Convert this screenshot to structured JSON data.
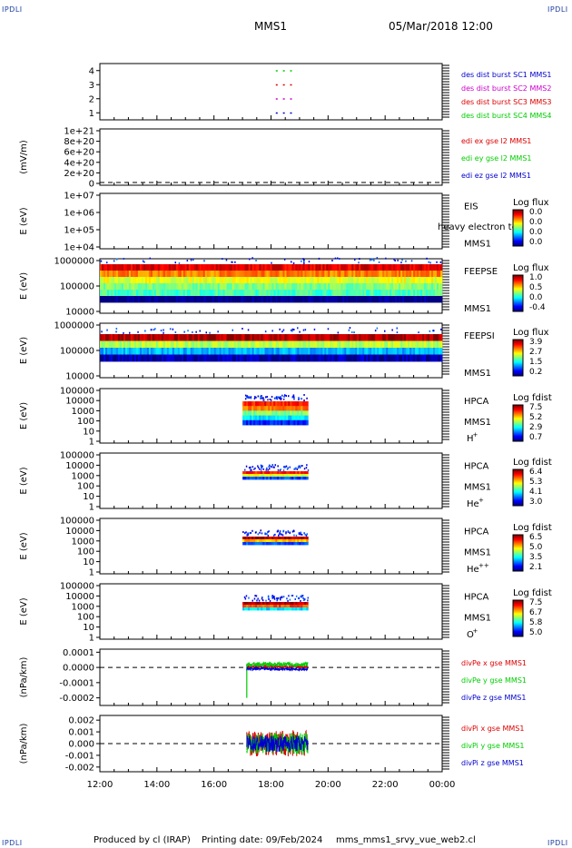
{
  "header": {
    "spacecraft": "MMS1",
    "datetime": "05/Mar/2018 12:00",
    "corner_label": "IPDLI"
  },
  "footer": {
    "produced_by": "Produced by cl (IRAP)",
    "printing_date": "Printing date: 09/Feb/2024",
    "filename": "mms_mms1_srvy_vue_web2.cl"
  },
  "colors": {
    "red": "#dd0000",
    "green": "#00cc00",
    "blue": "#0000cc",
    "magenta": "#cc00cc"
  },
  "chart_data": {
    "type": "multi-panel",
    "x_ticks": [
      "12:00",
      "14:00",
      "16:00",
      "18:00",
      "20:00",
      "22:00",
      "00:00"
    ],
    "x_range_hours": [
      12,
      24
    ],
    "panels": [
      {
        "type": "scatter",
        "yticks": [
          "4",
          "3",
          "2",
          "1"
        ],
        "ylim": [
          0.5,
          4.5
        ],
        "series": [
          {
            "name": "des dist burst SC1 MMS1",
            "color": "#0000cc",
            "points": [
              [
                18.2,
                1
              ],
              [
                18.45,
                1
              ],
              [
                18.7,
                1
              ]
            ]
          },
          {
            "name": "des dist burst SC2 MMS2",
            "color": "#cc00cc",
            "points": [
              [
                18.2,
                2
              ],
              [
                18.45,
                2
              ],
              [
                18.7,
                2
              ]
            ]
          },
          {
            "name": "des dist burst SC3 MMS3",
            "color": "#dd0000",
            "points": [
              [
                18.2,
                3
              ],
              [
                18.45,
                3
              ],
              [
                18.7,
                3
              ]
            ]
          },
          {
            "name": "des dist burst SC4 MMS4",
            "color": "#00cc00",
            "points": [
              [
                18.2,
                4
              ],
              [
                18.45,
                4
              ],
              [
                18.7,
                4
              ]
            ]
          }
        ]
      },
      {
        "type": "line",
        "ylabel": "(mV/m)",
        "yticks": [
          "1e+21",
          "8e+20",
          "6e+20",
          "4e+20",
          "2e+20",
          "0"
        ],
        "series": [
          {
            "name": "edi ex gse l2 MMS1",
            "color": "#dd0000"
          },
          {
            "name": "edi ey gse l2 MMS1",
            "color": "#00cc00"
          },
          {
            "name": "edi ez gse l2 MMS1",
            "color": "#0000cc"
          }
        ]
      },
      {
        "type": "heatmap",
        "ylabel": "E (eV)",
        "yticks": [
          "1e+07",
          "1e+06",
          "1e+05",
          "1e+04"
        ],
        "instrument": "EIS",
        "sc": "MMS1",
        "overlay_note": "heavy electron to",
        "cbar_title": "Log flux",
        "cbar_ticks": [
          "0.0",
          "0.0",
          "0.0",
          "0.0"
        ],
        "fill": null
      },
      {
        "type": "heatmap",
        "ylabel": "E (eV)",
        "yticks": [
          "1000000",
          "100000",
          "10000"
        ],
        "instrument": "FEEPSE",
        "sc": "MMS1",
        "cbar_title": "Log flux",
        "cbar_ticks": [
          "1.0",
          "0.5",
          "0.0",
          "-0.4"
        ],
        "fill": {
          "t0": 12,
          "t1": 24,
          "levels": [
            0.0,
            0.45,
            0.5,
            0.6,
            0.75,
            0.9
          ]
        }
      },
      {
        "type": "heatmap",
        "ylabel": "E (eV)",
        "yticks": [
          "1000000",
          "100000",
          "10000"
        ],
        "instrument": "FEEPSI",
        "sc": "MMS1",
        "cbar_title": "Log flux",
        "cbar_ticks": [
          "3.9",
          "2.7",
          "1.5",
          "0.2"
        ],
        "fill": {
          "t0": 12,
          "t1": 24,
          "levels": [
            0.05,
            0.3,
            0.55,
            0.95
          ]
        }
      },
      {
        "type": "heatmap",
        "ylabel": "E (eV)",
        "yticks": [
          "100000",
          "10000",
          "1000",
          "100",
          "10",
          "1"
        ],
        "instrument": "HPCA",
        "sc": "MMS1",
        "species": "H",
        "charge": "+",
        "cbar_title": "Log fdist",
        "cbar_ticks": [
          "7.5",
          "5.2",
          "2.9",
          "0.7"
        ],
        "fill": {
          "t0": 17.0,
          "t1": 19.3,
          "levels": [
            0.15,
            0.35,
            0.5,
            0.75,
            0.85
          ]
        }
      },
      {
        "type": "heatmap",
        "ylabel": "E (eV)",
        "yticks": [
          "100000",
          "10000",
          "1000",
          "100",
          "10",
          "1"
        ],
        "instrument": "HPCA",
        "sc": "MMS1",
        "species": "He",
        "charge": "+",
        "cbar_title": "Log fdist",
        "cbar_ticks": [
          "6.4",
          "5.3",
          "4.1",
          "3.0"
        ],
        "fill": {
          "t0": 17.0,
          "t1": 19.3,
          "levels": [
            0.2,
            0.6,
            0.85
          ]
        }
      },
      {
        "type": "heatmap",
        "ylabel": "E (eV)",
        "yticks": [
          "100000",
          "10000",
          "1000",
          "100",
          "10",
          "1"
        ],
        "instrument": "HPCA",
        "sc": "MMS1",
        "species": "He",
        "charge": "++",
        "cbar_title": "Log fdist",
        "cbar_ticks": [
          "6.5",
          "5.0",
          "3.5",
          "2.1"
        ],
        "fill": {
          "t0": 17.0,
          "t1": 19.3,
          "levels": [
            0.2,
            0.7,
            0.95
          ]
        }
      },
      {
        "type": "heatmap",
        "ylabel": "E (eV)",
        "yticks": [
          "100000",
          "10000",
          "1000",
          "100",
          "10",
          "1"
        ],
        "instrument": "HPCA",
        "sc": "MMS1",
        "species": "O",
        "charge": "+",
        "cbar_title": "Log fdist",
        "cbar_ticks": [
          "7.5",
          "6.7",
          "5.8",
          "5.0"
        ],
        "fill": {
          "t0": 17.0,
          "t1": 19.3,
          "levels": [
            0.35,
            0.8,
            0.95
          ]
        }
      },
      {
        "type": "line",
        "ylabel": "(nPa/km)",
        "yticks": [
          "0.0001",
          "0.0000",
          "-0.0001",
          "-0.0002"
        ],
        "yvals": [
          0.0001,
          0.0,
          -0.0001,
          -0.0002
        ],
        "ylim": [
          -0.00025,
          0.00012
        ],
        "zero_line": true,
        "t0": 17.15,
        "t1": 19.3,
        "series": [
          {
            "name": "divPe x gse MMS1",
            "color": "#dd0000",
            "center": 5e-06,
            "amp": 1e-05
          },
          {
            "name": "divPe y gse MMS1",
            "color": "#00cc00",
            "center": 2e-05,
            "amp": 1.5e-05,
            "spike_min": -0.0002
          },
          {
            "name": "divPe z gse MMS1",
            "color": "#0000cc",
            "center": -1e-05,
            "amp": 1e-05
          }
        ]
      },
      {
        "type": "line",
        "ylabel": "(nPa/km)",
        "yticks": [
          "0.002",
          "0.001",
          "0.000",
          "-0.001",
          "-0.002"
        ],
        "yvals": [
          0.002,
          0.001,
          0.0,
          -0.001,
          -0.002
        ],
        "ylim": [
          -0.0024,
          0.0024
        ],
        "zero_line": true,
        "t0": 17.15,
        "t1": 19.3,
        "series": [
          {
            "name": "divPi x gse MMS1",
            "color": "#dd0000",
            "center": 0.0,
            "amp": 0.0011
          },
          {
            "name": "divPi y gse MMS1",
            "color": "#00cc00",
            "center": 0.0,
            "amp": 0.0009
          },
          {
            "name": "divPi z gse MMS1",
            "color": "#0000cc",
            "center": 0.0,
            "amp": 0.0007
          }
        ]
      }
    ]
  }
}
